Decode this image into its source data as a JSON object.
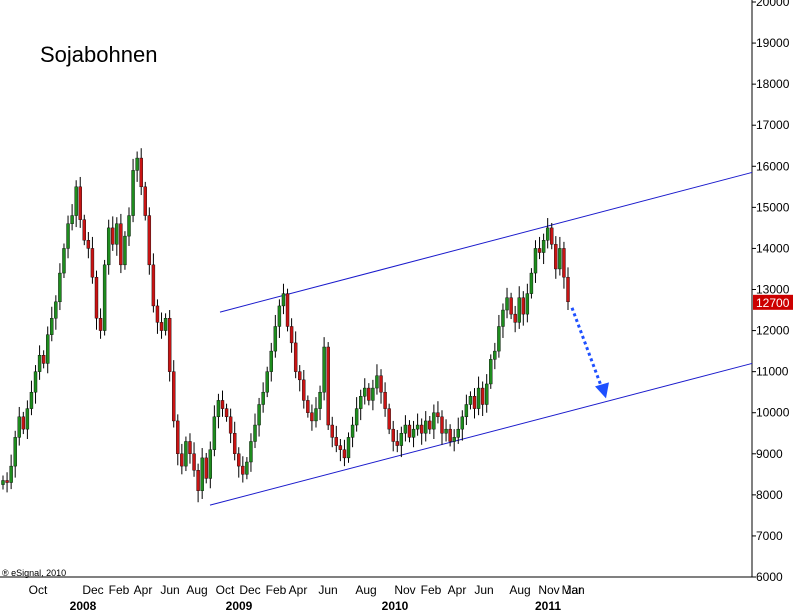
{
  "chart_data": {
    "type": "candlestick",
    "title": "Sojabohnen",
    "credit": "® eSignal, 2010",
    "ylim": [
      6000,
      20000
    ],
    "yticks": [
      6000,
      7000,
      8000,
      9000,
      10000,
      11000,
      12000,
      13000,
      14000,
      15000,
      16000,
      17000,
      18000,
      19000,
      20000
    ],
    "last_value": "12700",
    "x_month_labels": [
      "Oct",
      "Dec",
      "Feb",
      "Apr",
      "Jun",
      "Aug",
      "Oct",
      "Dec",
      "Feb",
      "Apr",
      "Jun",
      "Aug",
      "Nov",
      "Feb",
      "Apr",
      "Jun",
      "Aug",
      "Nov",
      "Jan",
      "Mar"
    ],
    "x_year_labels": [
      "2008",
      "2009",
      "2010",
      "2011"
    ],
    "colors": {
      "up": "#1e8c1e",
      "down": "#c81414",
      "trendline": "#1a1acc",
      "arrow": "#1e50ff",
      "last_value_bg": "#cc0000"
    },
    "trend_channel": {
      "upper": [
        [
          12450,
          15850
        ]
      ],
      "lower": [
        [
          7750,
          11200
        ]
      ]
    },
    "weekly_closes": [
      8350,
      8300,
      8700,
      9400,
      9900,
      9600,
      10100,
      10500,
      11000,
      11400,
      11200,
      11900,
      12300,
      12700,
      13400,
      14000,
      14600,
      14800,
      15500,
      14700,
      14200,
      14000,
      13300,
      12300,
      12000,
      13600,
      14500,
      14100,
      14600,
      13600,
      14300,
      14800,
      15900,
      16200,
      15500,
      14800,
      13600,
      12600,
      12200,
      12000,
      12300,
      11000,
      9800,
      9000,
      8700,
      9300,
      9000,
      8600,
      8100,
      8900,
      8400,
      9100,
      9900,
      10300,
      10100,
      9900,
      9500,
      9000,
      8700,
      8500,
      8800,
      9300,
      9700,
      10200,
      10500,
      11000,
      11500,
      12100,
      12600,
      12900,
      12100,
      11700,
      11000,
      10800,
      10300,
      10000,
      9800,
      10100,
      10500,
      11600,
      9700,
      9400,
      9200,
      9100,
      8900,
      9400,
      9700,
      10100,
      10400,
      10600,
      10300,
      10600,
      10900,
      10500,
      10100,
      9600,
      9300,
      9200,
      9500,
      9700,
      9400,
      9600,
      9700,
      9500,
      9800,
      9600,
      10000,
      9900,
      9500,
      9600,
      9300,
      9400,
      9600,
      9900,
      10200,
      10400,
      10100,
      10600,
      10200,
      10700,
      11300,
      11500,
      12100,
      12500,
      12800,
      12400,
      12200,
      12800,
      12400,
      12900,
      13400,
      14000,
      13900,
      14200,
      14500,
      14100,
      13500,
      14000,
      13300,
      12700
    ]
  },
  "annotations": {
    "arrow_target": 10300
  }
}
